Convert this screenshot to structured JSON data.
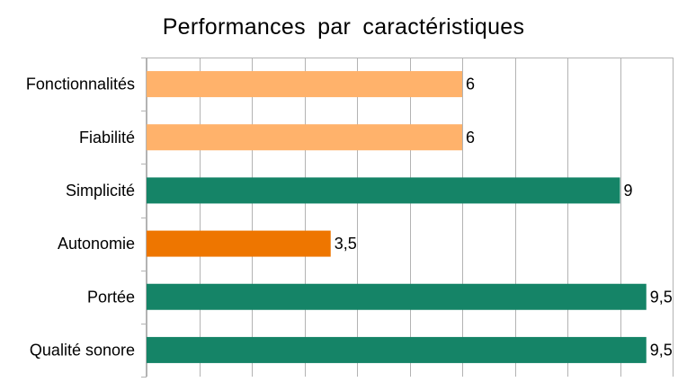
{
  "chart_data": {
    "type": "bar",
    "orientation": "horizontal",
    "title": "Performances par caractéristiques",
    "xlabel": "",
    "ylabel": "",
    "categories": [
      "Fonctionnalités",
      "Fiabilité",
      "Simplicité",
      "Autonomie",
      "Portée",
      "Qualité sonore"
    ],
    "values": [
      6,
      6,
      9,
      3.5,
      9.5,
      9.5
    ],
    "data_labels": [
      "6",
      "6",
      "9",
      "3,5",
      "9,5",
      "9,5"
    ],
    "bar_colors": [
      "#ffb26b",
      "#ffb26b",
      "#158467",
      "#ee7600",
      "#158467",
      "#158467"
    ],
    "xlim": [
      0,
      10
    ],
    "x_gridline_step": 1,
    "grid": true,
    "legend": "none"
  }
}
